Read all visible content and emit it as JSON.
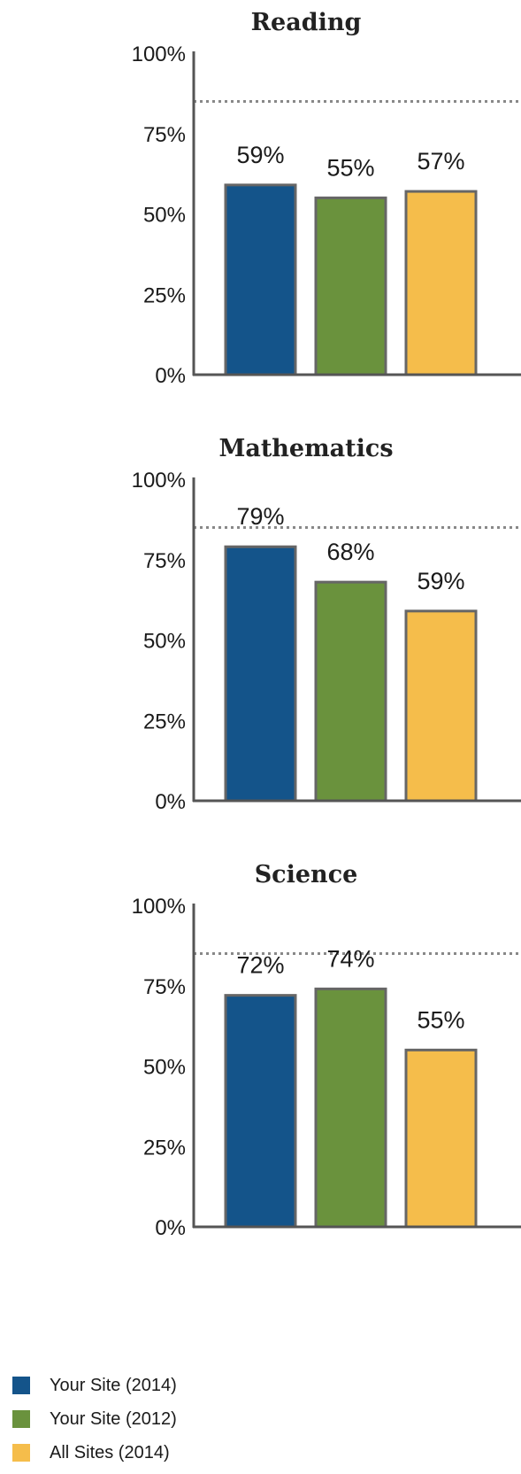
{
  "chart_data": [
    {
      "type": "bar",
      "title": "Reading",
      "categories": [
        "Your Site (2014)",
        "Your Site (2012)",
        "All Sites (2014)"
      ],
      "values": [
        59,
        55,
        57
      ],
      "value_labels": [
        "59%",
        "55%",
        "57%"
      ],
      "ylim": [
        0,
        100
      ],
      "yticks": [
        "0%",
        "25%",
        "50%",
        "75%",
        "100%"
      ],
      "reference_line": 85
    },
    {
      "type": "bar",
      "title": "Mathematics",
      "categories": [
        "Your Site (2014)",
        "Your Site (2012)",
        "All Sites (2014)"
      ],
      "values": [
        79,
        68,
        59
      ],
      "value_labels": [
        "79%",
        "68%",
        "59%"
      ],
      "ylim": [
        0,
        100
      ],
      "yticks": [
        "0%",
        "25%",
        "50%",
        "75%",
        "100%"
      ],
      "reference_line": 85
    },
    {
      "type": "bar",
      "title": "Science",
      "categories": [
        "Your Site (2014)",
        "Your Site (2012)",
        "All Sites (2014)"
      ],
      "values": [
        72,
        74,
        55
      ],
      "value_labels": [
        "72%",
        "74%",
        "55%"
      ],
      "ylim": [
        0,
        100
      ],
      "yticks": [
        "0%",
        "25%",
        "50%",
        "75%",
        "100%"
      ],
      "reference_line": 85
    }
  ],
  "legend": [
    {
      "label": "Your Site (2014)",
      "color": "#14548a"
    },
    {
      "label": "Your Site (2012)",
      "color": "#6a923d"
    },
    {
      "label": "All Sites (2014)",
      "color": "#f5bd4b"
    }
  ],
  "colors": {
    "bar_stroke": "#666666",
    "axis": "#555555",
    "reference_line": "#888888"
  }
}
